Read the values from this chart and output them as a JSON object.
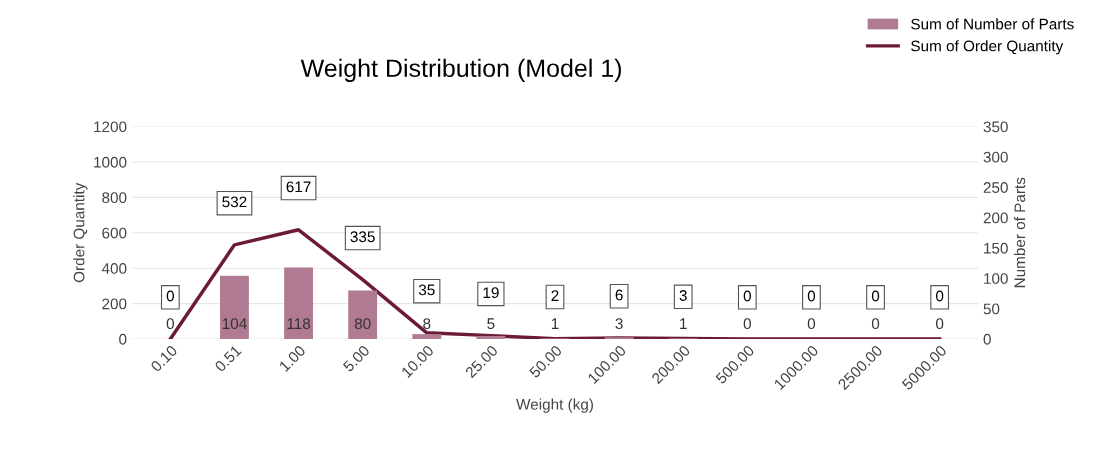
{
  "chart_data": {
    "type": "bar",
    "title": "Weight Distribution (Model 1)",
    "xlabel": "Weight (kg)",
    "ylabel": "Order Quantity",
    "y2label": "Number of Parts",
    "categories": [
      "0.10",
      "0.51",
      "1.00",
      "5.00",
      "10.00",
      "25.00",
      "50.00",
      "100.00",
      "200.00",
      "500.00",
      "1000.00",
      "2500.00",
      "5000.00"
    ],
    "series": [
      {
        "name": "Sum of Number of Parts",
        "axis": "y2",
        "color": "#b07a92",
        "values": [
          0,
          104,
          118,
          80,
          8,
          5,
          1,
          3,
          1,
          0,
          0,
          0,
          0
        ]
      },
      {
        "name": "Sum of Order Quantity",
        "type": "line",
        "axis": "y",
        "color": "#6b1a3a",
        "values": [
          0,
          532,
          617,
          335,
          35,
          19,
          2,
          6,
          3,
          0,
          0,
          0,
          0
        ]
      }
    ],
    "ylim": [
      0,
      1200
    ],
    "yticks": [
      0,
      200,
      400,
      600,
      800,
      1000,
      1200
    ],
    "y2lim": [
      0,
      350
    ],
    "y2ticks": [
      0,
      50,
      100,
      150,
      200,
      250,
      300,
      350
    ],
    "data_labels": true,
    "grid": "y",
    "legend": "top right",
    "marker": "none",
    "line_style": "solid"
  }
}
